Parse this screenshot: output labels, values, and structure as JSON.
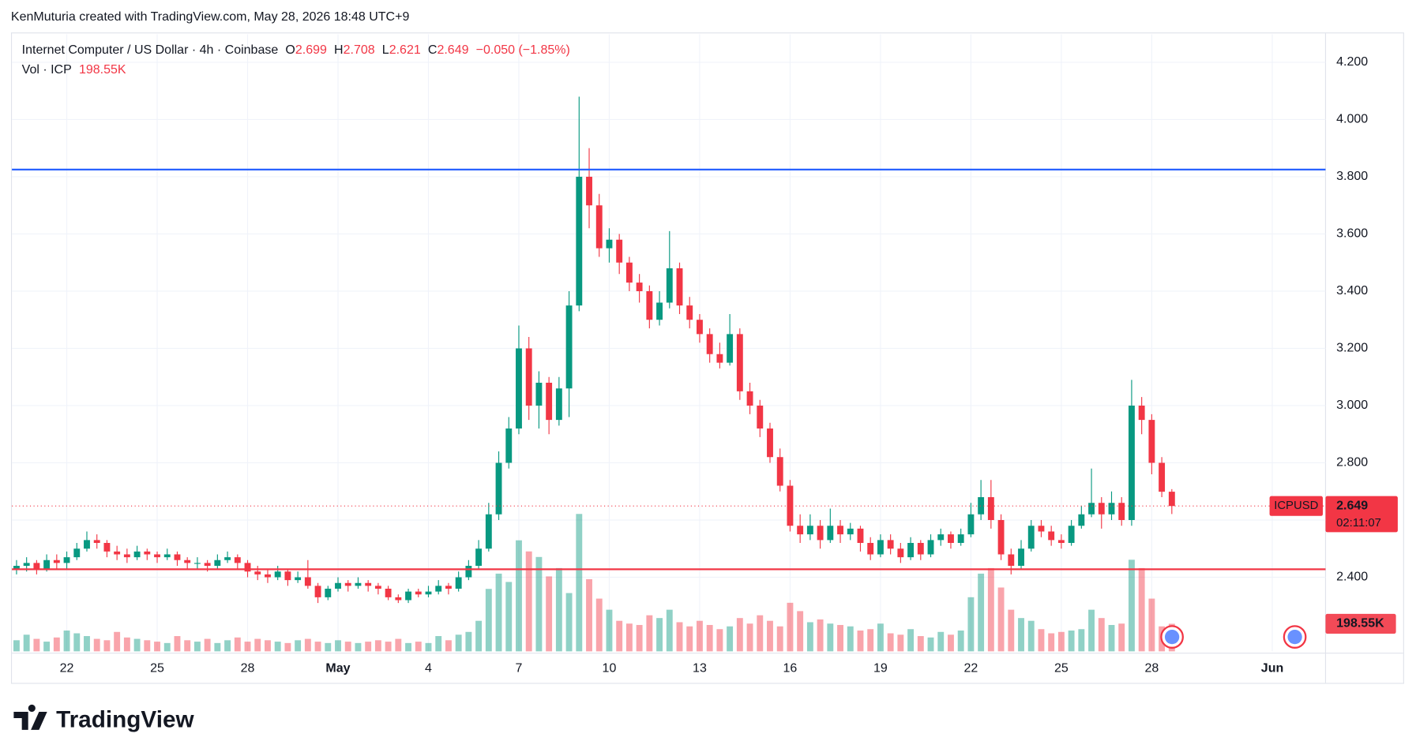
{
  "attribution": "KenMuturia created with TradingView.com, May 28, 2026 18:48 UTC+9",
  "brand": "TradingView",
  "chart_data": {
    "type": "candlestick",
    "title": "Internet Computer / US Dollar · 4h · Coinbase",
    "ohlc_letters": [
      "O",
      "H",
      "L",
      "C"
    ],
    "change_label": "−0.050 (−1.85%)",
    "volume_title": "Vol · ICP",
    "volume_label": "198.55K",
    "symbol": "ICPUSD",
    "countdown": "02:11:07",
    "up_color": "#089981",
    "down_color": "#f23645",
    "grid": true,
    "ylim": [
      2.141,
      4.298
    ],
    "yticks": [
      {
        "value": 2.4,
        "label": "2.400"
      },
      {
        "value": 2.6,
        "label": "2.600"
      },
      {
        "value": 2.8,
        "label": "2.800"
      },
      {
        "value": 3.0,
        "label": "3.000"
      },
      {
        "value": 3.2,
        "label": "3.200"
      },
      {
        "value": 3.4,
        "label": "3.400"
      },
      {
        "value": 3.6,
        "label": "3.600"
      },
      {
        "value": 3.8,
        "label": "3.800"
      },
      {
        "value": 4.0,
        "label": "4.000"
      },
      {
        "value": 4.2,
        "label": "4.200"
      }
    ],
    "xlim": [
      -0.46,
      130.3
    ],
    "xticks": [
      {
        "value": 5,
        "label": "22"
      },
      {
        "value": 14,
        "label": "25"
      },
      {
        "value": 23,
        "label": "28"
      },
      {
        "value": 32,
        "label": "May"
      },
      {
        "value": 41,
        "label": "4"
      },
      {
        "value": 50,
        "label": "7"
      },
      {
        "value": 59,
        "label": "10"
      },
      {
        "value": 68,
        "label": "13"
      },
      {
        "value": 77,
        "label": "16"
      },
      {
        "value": 86,
        "label": "19"
      },
      {
        "value": 95,
        "label": "22"
      },
      {
        "value": 104,
        "label": "25"
      },
      {
        "value": 113,
        "label": "28"
      },
      {
        "value": 125,
        "label": "Jun"
      }
    ],
    "hlines": [
      {
        "value": 3.825,
        "color": "#2962ff"
      },
      {
        "value": 2.428,
        "color": "#f23645"
      }
    ],
    "volume_ylim": [
      0,
      1300000
    ],
    "ohlc": [
      [
        2.43,
        2.46,
        2.41,
        2.44
      ],
      [
        2.44,
        2.47,
        2.42,
        2.45
      ],
      [
        2.45,
        2.46,
        2.41,
        2.43
      ],
      [
        2.43,
        2.48,
        2.42,
        2.46
      ],
      [
        2.46,
        2.48,
        2.43,
        2.45
      ],
      [
        2.45,
        2.49,
        2.43,
        2.47
      ],
      [
        2.47,
        2.52,
        2.46,
        2.5
      ],
      [
        2.5,
        2.56,
        2.49,
        2.53
      ],
      [
        2.53,
        2.55,
        2.5,
        2.52
      ],
      [
        2.52,
        2.53,
        2.47,
        2.49
      ],
      [
        2.49,
        2.51,
        2.46,
        2.48
      ],
      [
        2.48,
        2.5,
        2.45,
        2.47
      ],
      [
        2.47,
        2.51,
        2.46,
        2.49
      ],
      [
        2.49,
        2.5,
        2.46,
        2.48
      ],
      [
        2.48,
        2.49,
        2.45,
        2.47
      ],
      [
        2.47,
        2.5,
        2.46,
        2.48
      ],
      [
        2.48,
        2.49,
        2.44,
        2.46
      ],
      [
        2.46,
        2.47,
        2.43,
        2.45
      ],
      [
        2.45,
        2.47,
        2.43,
        2.45
      ],
      [
        2.45,
        2.46,
        2.42,
        2.44
      ],
      [
        2.44,
        2.48,
        2.43,
        2.46
      ],
      [
        2.46,
        2.49,
        2.45,
        2.47
      ],
      [
        2.47,
        2.48,
        2.43,
        2.45
      ],
      [
        2.45,
        2.46,
        2.4,
        2.42
      ],
      [
        2.42,
        2.44,
        2.39,
        2.41
      ],
      [
        2.41,
        2.43,
        2.38,
        2.4
      ],
      [
        2.4,
        2.44,
        2.39,
        2.42
      ],
      [
        2.42,
        2.43,
        2.37,
        2.39
      ],
      [
        2.39,
        2.42,
        2.38,
        2.4
      ],
      [
        2.4,
        2.46,
        2.36,
        2.37
      ],
      [
        2.37,
        2.38,
        2.31,
        2.33
      ],
      [
        2.33,
        2.37,
        2.32,
        2.36
      ],
      [
        2.36,
        2.4,
        2.35,
        2.38
      ],
      [
        2.38,
        2.39,
        2.35,
        2.37
      ],
      [
        2.37,
        2.4,
        2.36,
        2.38
      ],
      [
        2.38,
        2.39,
        2.35,
        2.37
      ],
      [
        2.37,
        2.38,
        2.34,
        2.36
      ],
      [
        2.36,
        2.37,
        2.32,
        2.33
      ],
      [
        2.33,
        2.34,
        2.31,
        2.32
      ],
      [
        2.32,
        2.36,
        2.31,
        2.35
      ],
      [
        2.35,
        2.36,
        2.33,
        2.34
      ],
      [
        2.34,
        2.37,
        2.33,
        2.35
      ],
      [
        2.35,
        2.39,
        2.34,
        2.37
      ],
      [
        2.37,
        2.38,
        2.34,
        2.36
      ],
      [
        2.36,
        2.42,
        2.35,
        2.4
      ],
      [
        2.4,
        2.46,
        2.39,
        2.44
      ],
      [
        2.44,
        2.53,
        2.43,
        2.5
      ],
      [
        2.5,
        2.66,
        2.49,
        2.62
      ],
      [
        2.62,
        2.84,
        2.6,
        2.8
      ],
      [
        2.8,
        2.96,
        2.78,
        2.92
      ],
      [
        2.92,
        3.28,
        2.9,
        3.2
      ],
      [
        3.2,
        3.24,
        2.95,
        3.0
      ],
      [
        3.0,
        3.12,
        2.92,
        3.08
      ],
      [
        3.08,
        3.1,
        2.9,
        2.95
      ],
      [
        2.95,
        3.1,
        2.93,
        3.06
      ],
      [
        3.06,
        3.4,
        2.96,
        3.35
      ],
      [
        3.35,
        4.08,
        3.33,
        3.8
      ],
      [
        3.8,
        3.9,
        3.62,
        3.7
      ],
      [
        3.7,
        3.74,
        3.52,
        3.55
      ],
      [
        3.55,
        3.62,
        3.5,
        3.58
      ],
      [
        3.58,
        3.6,
        3.46,
        3.5
      ],
      [
        3.5,
        3.52,
        3.4,
        3.43
      ],
      [
        3.43,
        3.46,
        3.36,
        3.4
      ],
      [
        3.4,
        3.42,
        3.27,
        3.3
      ],
      [
        3.3,
        3.4,
        3.28,
        3.36
      ],
      [
        3.36,
        3.61,
        3.34,
        3.48
      ],
      [
        3.48,
        3.5,
        3.32,
        3.35
      ],
      [
        3.35,
        3.38,
        3.27,
        3.3
      ],
      [
        3.3,
        3.32,
        3.22,
        3.25
      ],
      [
        3.25,
        3.27,
        3.15,
        3.18
      ],
      [
        3.18,
        3.22,
        3.13,
        3.15
      ],
      [
        3.15,
        3.32,
        3.14,
        3.25
      ],
      [
        3.25,
        3.27,
        3.02,
        3.05
      ],
      [
        3.05,
        3.08,
        2.97,
        3.0
      ],
      [
        3.0,
        3.02,
        2.89,
        2.92
      ],
      [
        2.92,
        2.94,
        2.8,
        2.82
      ],
      [
        2.82,
        2.85,
        2.7,
        2.72
      ],
      [
        2.72,
        2.74,
        2.56,
        2.58
      ],
      [
        2.58,
        2.62,
        2.52,
        2.55
      ],
      [
        2.55,
        2.62,
        2.53,
        2.58
      ],
      [
        2.58,
        2.6,
        2.5,
        2.53
      ],
      [
        2.53,
        2.64,
        2.52,
        2.58
      ],
      [
        2.58,
        2.6,
        2.52,
        2.55
      ],
      [
        2.55,
        2.59,
        2.53,
        2.57
      ],
      [
        2.57,
        2.58,
        2.49,
        2.52
      ],
      [
        2.52,
        2.54,
        2.46,
        2.48
      ],
      [
        2.48,
        2.55,
        2.47,
        2.53
      ],
      [
        2.53,
        2.55,
        2.48,
        2.5
      ],
      [
        2.5,
        2.52,
        2.45,
        2.47
      ],
      [
        2.47,
        2.54,
        2.46,
        2.52
      ],
      [
        2.52,
        2.53,
        2.46,
        2.48
      ],
      [
        2.48,
        2.55,
        2.47,
        2.53
      ],
      [
        2.53,
        2.57,
        2.51,
        2.55
      ],
      [
        2.55,
        2.56,
        2.5,
        2.52
      ],
      [
        2.52,
        2.57,
        2.51,
        2.55
      ],
      [
        2.55,
        2.66,
        2.54,
        2.62
      ],
      [
        2.62,
        2.74,
        2.6,
        2.68
      ],
      [
        2.68,
        2.74,
        2.57,
        2.6
      ],
      [
        2.6,
        2.62,
        2.46,
        2.48
      ],
      [
        2.48,
        2.5,
        2.41,
        2.44
      ],
      [
        2.44,
        2.53,
        2.43,
        2.5
      ],
      [
        2.5,
        2.6,
        2.49,
        2.58
      ],
      [
        2.58,
        2.6,
        2.54,
        2.56
      ],
      [
        2.56,
        2.58,
        2.51,
        2.53
      ],
      [
        2.53,
        2.55,
        2.5,
        2.52
      ],
      [
        2.52,
        2.6,
        2.51,
        2.58
      ],
      [
        2.58,
        2.65,
        2.57,
        2.62
      ],
      [
        2.62,
        2.78,
        2.61,
        2.66
      ],
      [
        2.66,
        2.68,
        2.57,
        2.62
      ],
      [
        2.62,
        2.7,
        2.6,
        2.66
      ],
      [
        2.66,
        2.68,
        2.58,
        2.6
      ],
      [
        2.6,
        3.09,
        2.58,
        3.0
      ],
      [
        3.0,
        3.03,
        2.9,
        2.95
      ],
      [
        2.95,
        2.97,
        2.76,
        2.8
      ],
      [
        2.8,
        2.82,
        2.68,
        2.699
      ],
      [
        2.699,
        2.708,
        2.621,
        2.649
      ]
    ],
    "volume": [
      80000,
      120000,
      90000,
      70000,
      100000,
      150000,
      130000,
      110000,
      90000,
      80000,
      140000,
      100000,
      90000,
      80000,
      70000,
      60000,
      110000,
      80000,
      70000,
      90000,
      60000,
      80000,
      100000,
      70000,
      90000,
      80000,
      70000,
      60000,
      80000,
      90000,
      70000,
      60000,
      80000,
      70000,
      60000,
      70000,
      80000,
      70000,
      90000,
      60000,
      70000,
      60000,
      110000,
      80000,
      120000,
      140000,
      220000,
      450000,
      560000,
      500000,
      800000,
      720000,
      680000,
      540000,
      600000,
      420000,
      990000,
      520000,
      380000,
      300000,
      220000,
      200000,
      190000,
      260000,
      240000,
      300000,
      210000,
      180000,
      220000,
      190000,
      160000,
      180000,
      240000,
      200000,
      260000,
      220000,
      180000,
      350000,
      290000,
      210000,
      230000,
      200000,
      190000,
      180000,
      150000,
      160000,
      200000,
      130000,
      120000,
      160000,
      110000,
      100000,
      140000,
      120000,
      150000,
      390000,
      560000,
      600000,
      460000,
      300000,
      240000,
      220000,
      160000,
      130000,
      140000,
      150000,
      160000,
      300000,
      240000,
      190000,
      200000,
      660000,
      600000,
      380000,
      180000,
      198550
    ]
  }
}
